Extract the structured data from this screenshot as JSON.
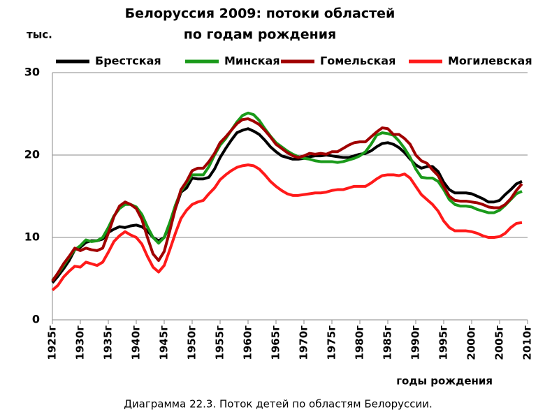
{
  "chart_data": {
    "type": "line",
    "title": [
      "Белоруссия 2009: потоки областей",
      "по годам рождения"
    ],
    "ylabel": "тыс.",
    "xlabel": "годы рождения",
    "caption": "Диаграмма 22.3. Поток детей по областям Белоруссии.",
    "x": [
      1925,
      1926,
      1927,
      1928,
      1929,
      1930,
      1931,
      1932,
      1933,
      1934,
      1935,
      1936,
      1937,
      1938,
      1939,
      1940,
      1941,
      1942,
      1943,
      1944,
      1945,
      1946,
      1947,
      1948,
      1949,
      1950,
      1951,
      1952,
      1953,
      1954,
      1955,
      1956,
      1957,
      1958,
      1959,
      1960,
      1961,
      1962,
      1963,
      1964,
      1965,
      1966,
      1967,
      1968,
      1969,
      1970,
      1971,
      1972,
      1973,
      1974,
      1975,
      1976,
      1977,
      1978,
      1979,
      1980,
      1981,
      1982,
      1983,
      1984,
      1985,
      1986,
      1987,
      1988,
      1989,
      1990,
      1991,
      1992,
      1993,
      1994,
      1995,
      1996,
      1997,
      1998,
      1999,
      2000,
      2001,
      2002,
      2003,
      2004,
      2005,
      2006,
      2007,
      2008,
      2009
    ],
    "series": [
      {
        "name": "Брестская",
        "color": "#000000",
        "values": [
          4.5,
          5.3,
          6.2,
          7.2,
          8.5,
          8.8,
          9.4,
          9.6,
          9.6,
          9.8,
          10.6,
          11.0,
          11.3,
          11.2,
          11.4,
          11.5,
          11.3,
          10.8,
          10.0,
          9.6,
          10.0,
          11.5,
          13.5,
          15.5,
          16.0,
          17.2,
          17.1,
          17.1,
          17.3,
          18.3,
          19.7,
          20.8,
          21.8,
          22.7,
          23.0,
          23.2,
          22.9,
          22.5,
          21.8,
          21.0,
          20.4,
          19.9,
          19.7,
          19.5,
          19.5,
          19.6,
          19.8,
          19.9,
          19.9,
          20.0,
          19.9,
          19.8,
          19.7,
          19.7,
          19.9,
          20.1,
          20.2,
          20.5,
          21.0,
          21.4,
          21.5,
          21.3,
          20.9,
          20.3,
          19.5,
          18.8,
          18.4,
          18.6,
          18.6,
          18.0,
          16.7,
          15.8,
          15.4,
          15.4,
          15.4,
          15.3,
          15.0,
          14.7,
          14.3,
          14.3,
          14.5,
          15.2,
          15.8,
          16.5,
          16.8
        ]
      },
      {
        "name": "Минская",
        "color": "#1a9a1a",
        "values": [
          4.8,
          5.6,
          6.6,
          7.6,
          8.5,
          9.0,
          9.7,
          9.5,
          9.6,
          10.0,
          11.2,
          12.6,
          13.5,
          14.0,
          14.0,
          13.7,
          12.8,
          11.3,
          10.0,
          9.3,
          10.0,
          11.8,
          13.9,
          15.6,
          16.6,
          17.6,
          17.6,
          17.6,
          18.6,
          20.0,
          21.2,
          22.0,
          23.0,
          24.0,
          24.8,
          25.1,
          24.9,
          24.2,
          23.2,
          22.3,
          21.5,
          21.0,
          20.5,
          20.1,
          19.8,
          19.6,
          19.5,
          19.3,
          19.2,
          19.2,
          19.2,
          19.1,
          19.2,
          19.4,
          19.6,
          19.9,
          20.4,
          21.3,
          22.4,
          22.7,
          22.6,
          22.4,
          21.7,
          20.8,
          19.7,
          18.3,
          17.3,
          17.2,
          17.2,
          16.8,
          15.8,
          14.6,
          14.0,
          13.8,
          13.8,
          13.7,
          13.4,
          13.2,
          13.0,
          13.0,
          13.3,
          13.9,
          14.6,
          15.3,
          15.6
        ]
      },
      {
        "name": "Гомельская",
        "color": "#a00000",
        "values": [
          4.7,
          5.7,
          6.8,
          7.7,
          8.7,
          8.4,
          8.7,
          8.5,
          8.4,
          8.7,
          10.5,
          12.5,
          13.8,
          14.3,
          14.0,
          13.5,
          12.2,
          10.0,
          8.0,
          7.2,
          8.3,
          10.8,
          13.5,
          15.8,
          16.8,
          18.1,
          18.4,
          18.4,
          19.2,
          20.2,
          21.5,
          22.2,
          23.0,
          23.8,
          24.3,
          24.4,
          24.1,
          23.7,
          23.0,
          22.2,
          21.3,
          20.8,
          20.3,
          19.9,
          19.7,
          19.9,
          20.2,
          20.1,
          20.2,
          20.1,
          20.4,
          20.4,
          20.8,
          21.2,
          21.5,
          21.6,
          21.6,
          22.2,
          22.8,
          23.3,
          23.2,
          22.5,
          22.5,
          22.0,
          21.3,
          20.0,
          19.3,
          19.0,
          18.2,
          17.5,
          16.2,
          15.0,
          14.5,
          14.4,
          14.4,
          14.3,
          14.2,
          14.0,
          13.7,
          13.6,
          13.6,
          14.0,
          14.7,
          15.7,
          16.5
        ]
      },
      {
        "name": "Могилевская",
        "color": "#ff1a1a",
        "values": [
          3.6,
          4.2,
          5.2,
          5.9,
          6.5,
          6.4,
          7.0,
          6.8,
          6.6,
          7.0,
          8.2,
          9.5,
          10.2,
          10.7,
          10.3,
          10.0,
          9.2,
          7.7,
          6.4,
          5.8,
          6.6,
          8.5,
          10.5,
          12.3,
          13.3,
          14.0,
          14.3,
          14.5,
          15.3,
          16.0,
          17.0,
          17.6,
          18.1,
          18.5,
          18.7,
          18.8,
          18.7,
          18.3,
          17.6,
          16.8,
          16.2,
          15.7,
          15.3,
          15.1,
          15.1,
          15.2,
          15.3,
          15.4,
          15.4,
          15.5,
          15.7,
          15.8,
          15.8,
          16.0,
          16.2,
          16.2,
          16.2,
          16.6,
          17.1,
          17.5,
          17.6,
          17.6,
          17.5,
          17.7,
          17.2,
          16.2,
          15.2,
          14.6,
          14.0,
          13.2,
          12.0,
          11.2,
          10.8,
          10.8,
          10.8,
          10.7,
          10.5,
          10.2,
          10.0,
          10.0,
          10.1,
          10.5,
          11.2,
          11.7,
          11.8
        ]
      }
    ],
    "xlim": [
      1925,
      2010
    ],
    "xticks": [
      {
        "value": 1925,
        "label": "1925г"
      },
      {
        "value": 1930,
        "label": "1930г"
      },
      {
        "value": 1935,
        "label": "1935г"
      },
      {
        "value": 1940,
        "label": "1940г"
      },
      {
        "value": 1945,
        "label": "1945г"
      },
      {
        "value": 1950,
        "label": "1950г"
      },
      {
        "value": 1955,
        "label": "1955г"
      },
      {
        "value": 1960,
        "label": "1960г"
      },
      {
        "value": 1965,
        "label": "1965г"
      },
      {
        "value": 1970,
        "label": "1970г"
      },
      {
        "value": 1975,
        "label": "1975г"
      },
      {
        "value": 1980,
        "label": "1980г"
      },
      {
        "value": 1985,
        "label": "1985г"
      },
      {
        "value": 1990,
        "label": "1990г"
      },
      {
        "value": 1995,
        "label": "1995г"
      },
      {
        "value": 2000,
        "label": "2000г"
      },
      {
        "value": 2005,
        "label": "2005г"
      },
      {
        "value": 2010,
        "label": "2010г"
      }
    ],
    "ylim": [
      0,
      30
    ],
    "yticks": [
      0,
      10,
      20,
      30
    ],
    "grid": true,
    "legend": "top"
  }
}
